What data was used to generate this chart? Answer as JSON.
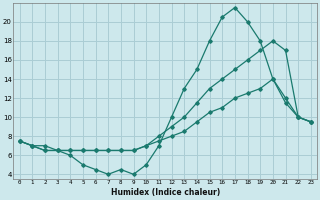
{
  "xlabel": "Humidex (Indice chaleur)",
  "background_color": "#cde8ec",
  "grid_color": "#aacdd4",
  "line_color": "#1a7a6e",
  "xlim": [
    -0.5,
    23.5
  ],
  "ylim": [
    3.5,
    22
  ],
  "xticks": [
    0,
    1,
    2,
    3,
    4,
    5,
    6,
    7,
    8,
    9,
    10,
    11,
    12,
    13,
    14,
    15,
    16,
    17,
    18,
    19,
    20,
    21,
    22,
    23
  ],
  "yticks": [
    4,
    6,
    8,
    10,
    12,
    14,
    16,
    18,
    20
  ],
  "series": [
    {
      "x": [
        0,
        1,
        2,
        3,
        4,
        5,
        6,
        7,
        8,
        9,
        10,
        11,
        12,
        13,
        14,
        15,
        16,
        17,
        18,
        19,
        20,
        21,
        22,
        23
      ],
      "y": [
        7.5,
        7,
        7,
        6.5,
        6,
        5,
        4.5,
        4,
        4.5,
        4,
        5,
        7,
        10,
        13,
        15,
        18,
        20.5,
        21.5,
        20,
        18,
        14,
        11.5,
        10,
        9.5
      ]
    },
    {
      "x": [
        0,
        1,
        2,
        3,
        4,
        5,
        6,
        7,
        8,
        9,
        10,
        11,
        12,
        13,
        14,
        15,
        16,
        17,
        18,
        19,
        20,
        21,
        22,
        23
      ],
      "y": [
        7.5,
        7,
        6.5,
        6.5,
        6.5,
        6.5,
        6.5,
        6.5,
        6.5,
        6.5,
        7,
        8,
        9,
        10,
        11.5,
        13,
        14,
        15,
        16,
        17,
        18,
        17,
        10,
        9.5
      ]
    },
    {
      "x": [
        0,
        1,
        2,
        3,
        4,
        5,
        6,
        7,
        8,
        9,
        10,
        11,
        12,
        13,
        14,
        15,
        16,
        17,
        18,
        19,
        20,
        21,
        22,
        23
      ],
      "y": [
        7.5,
        7,
        6.5,
        6.5,
        6.5,
        6.5,
        6.5,
        6.5,
        6.5,
        6.5,
        7,
        7.5,
        8,
        8.5,
        9.5,
        10.5,
        11,
        12,
        12.5,
        13,
        14,
        12,
        10,
        9.5
      ]
    }
  ]
}
